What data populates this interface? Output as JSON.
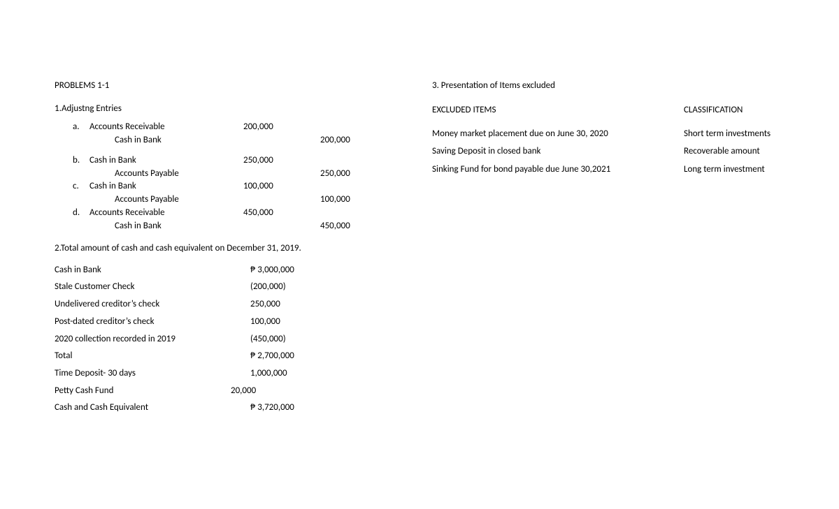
{
  "left": {
    "title": "PROBLEMS 1-1",
    "section1_title": "1.Adjustng Entries",
    "entries": {
      "a": {
        "letter": "a.",
        "debit_name": "Accounts Receivable",
        "debit_amt": "200,000",
        "credit_name": "Cash in Bank",
        "credit_amt": "200,000"
      },
      "b": {
        "letter": "b.",
        "debit_name": "Cash in Bank",
        "debit_amt": "250,000",
        "credit_name": "Accounts Payable",
        "credit_amt": "250,000"
      },
      "c": {
        "letter": "c.",
        "debit_name": "Cash in Bank",
        "debit_amt": "100,000",
        "credit_name": "Accounts Payable",
        "credit_amt": "100,000"
      },
      "d": {
        "letter": "d.",
        "debit_name": "Accounts Receivable",
        "debit_amt": "450,000",
        "credit_name": "Cash in Bank",
        "credit_amt": "450,000"
      }
    },
    "section2_title": "2.Total amount of cash and cash equivalent on December 31, 2019.",
    "totals": {
      "r1": {
        "label": "Cash in Bank",
        "amt": "₱ 3,000,000"
      },
      "r2": {
        "label": "Stale Customer Check",
        "amt": "(200,000)"
      },
      "r3": {
        "label": "Undelivered creditor’s check",
        "amt": "250,000"
      },
      "r4": {
        "label": "Post-dated creditor’s check",
        "amt": "100,000"
      },
      "r5": {
        "label": "2020 collection recorded in 2019",
        "amt": "(450,000)"
      },
      "r6": {
        "label": "Total",
        "amt": "₱ 2,700,000"
      },
      "r7": {
        "label": "Time Deposit- 30 days",
        "amt": "1,000,000"
      },
      "r8": {
        "label": "Petty Cash Fund",
        "amt": "20,000"
      },
      "r9": {
        "label": "Cash and Cash Equivalent",
        "amt": "₱ 3,720,000"
      }
    }
  },
  "right": {
    "section3_title": "3. Presentation of Items excluded",
    "header_left": "EXCLUDED ITEMS",
    "header_right": "CLASSIFICATION",
    "rows": {
      "r1": {
        "item": "Money market placement due on June 30, 2020",
        "cls": "Short term investments"
      },
      "r2": {
        "item": "Saving Deposit in closed bank",
        "cls": "Recoverable amount"
      },
      "r3": {
        "item": "Sinking Fund for bond payable due June 30,2021",
        "cls": "Long term investment"
      }
    }
  }
}
